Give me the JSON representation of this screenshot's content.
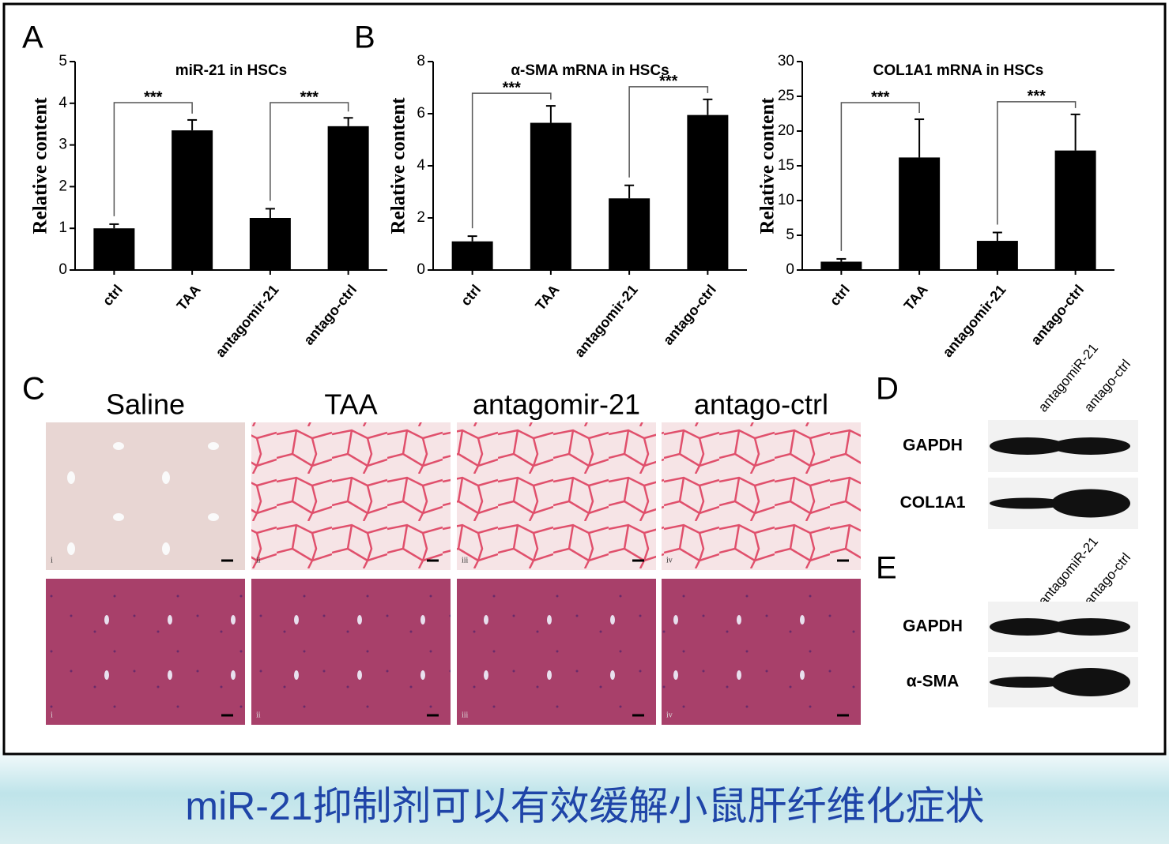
{
  "chart_data": [
    {
      "type": "bar",
      "panel_label": "A",
      "title": "miR-21 in HSCs",
      "y_label": "Relative content",
      "categories": [
        "ctrl",
        "TAA",
        "antagomir-21",
        "antago-ctrl"
      ],
      "values": [
        1.0,
        3.35,
        1.25,
        3.45
      ],
      "errors": [
        0.1,
        0.25,
        0.22,
        0.2
      ],
      "color": "#000000",
      "ylim": [
        0,
        5
      ],
      "yticks": [
        0,
        1,
        2,
        3,
        4,
        5
      ],
      "significance": [
        "***",
        "***"
      ]
    },
    {
      "type": "bar",
      "panel_label": "B",
      "title": "α-SMA mRNA in HSCs",
      "y_label": "Relative content",
      "categories": [
        "ctrl",
        "TAA",
        "antagomir-21",
        "antago-ctrl"
      ],
      "values": [
        1.1,
        5.65,
        2.75,
        5.95
      ],
      "errors": [
        0.2,
        0.65,
        0.5,
        0.6
      ],
      "color": "#000000",
      "ylim": [
        0,
        8
      ],
      "yticks": [
        0,
        2,
        4,
        6,
        8
      ],
      "significance": [
        "***",
        "***"
      ]
    },
    {
      "type": "bar",
      "title": "COL1A1 mRNA in HSCs",
      "y_label": "Relative content",
      "categories": [
        "ctrl",
        "TAA",
        "antagomir-21",
        "antago-ctrl"
      ],
      "values": [
        1.2,
        16.2,
        4.2,
        17.2
      ],
      "errors": [
        0.4,
        5.5,
        1.2,
        5.2
      ],
      "color": "#000000",
      "ylim": [
        0,
        30
      ],
      "yticks": [
        0,
        5,
        10,
        15,
        20,
        25,
        30
      ],
      "significance": [
        "***",
        "***"
      ]
    }
  ],
  "histology": {
    "panel_label": "C",
    "columns": [
      "Saline",
      "TAA",
      "antagomir-21",
      "antago-ctrl"
    ],
    "image_labels": [
      [
        "i",
        "ii",
        "iii",
        "iv"
      ],
      [
        "i",
        "ii",
        "iii",
        "iv"
      ]
    ]
  },
  "blots": [
    {
      "panel_label": "D",
      "lanes": [
        "antagomiR-21",
        "antago-ctrl"
      ],
      "rows": [
        "GAPDH",
        "COL1A1"
      ]
    },
    {
      "panel_label": "E",
      "lanes": [
        "antagomiR-21",
        "antago-ctrl"
      ],
      "rows": [
        "GAPDH",
        "α-SMA"
      ]
    }
  ],
  "caption": "miR-21抑制剂可以有效缓解小鼠肝纤维化症状"
}
